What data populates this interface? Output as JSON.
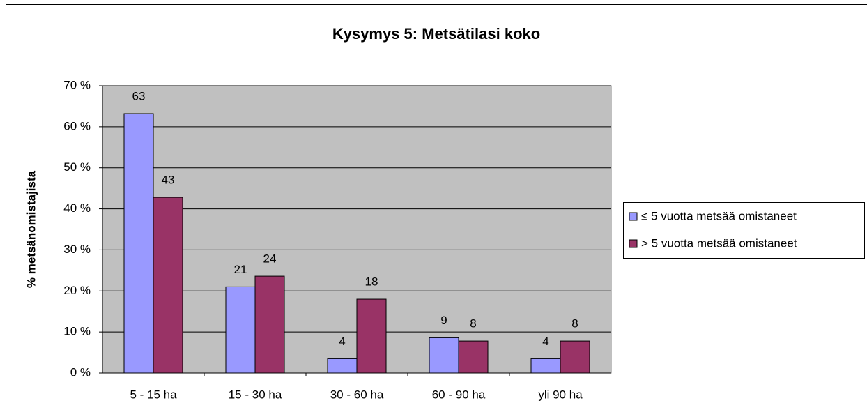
{
  "chart_data": {
    "type": "bar",
    "title": "Kysymys 5: Metsätilasi koko",
    "ylabel": "% metsänomistajista",
    "categories": [
      "5 - 15 ha",
      "15 - 30 ha",
      "30 - 60 ha",
      "60 - 90 ha",
      "yli 90 ha"
    ],
    "series": [
      {
        "name": "≤ 5 vuotta metsää omistaneet",
        "color": "#9999ff",
        "values": [
          63.2,
          21,
          3.5,
          8.6,
          3.5
        ],
        "value_labels": [
          "63",
          "21",
          "4",
          "9",
          "4"
        ]
      },
      {
        "name": "> 5 vuotta metsää omistaneet",
        "color": "#993366",
        "values": [
          42.8,
          23.6,
          18,
          7.8,
          7.8
        ],
        "value_labels": [
          "43",
          "24",
          "18",
          "8",
          "8"
        ]
      }
    ],
    "ylim": [
      0,
      70
    ],
    "yticks": [
      {
        "value": 0,
        "label": "0 %"
      },
      {
        "value": 10,
        "label": "10 %"
      },
      {
        "value": 20,
        "label": "20 %"
      },
      {
        "value": 30,
        "label": "30 %"
      },
      {
        "value": 40,
        "label": "40 %"
      },
      {
        "value": 50,
        "label": "50 %"
      },
      {
        "value": 60,
        "label": "60 %"
      },
      {
        "value": 70,
        "label": "70 %"
      }
    ],
    "grid": true,
    "legend": "right"
  }
}
